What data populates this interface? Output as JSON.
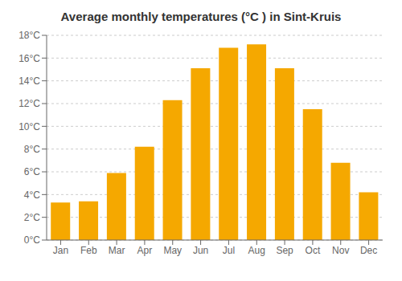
{
  "chart_data": {
    "type": "bar",
    "title": "Average monthly temperatures (°C ) in Sint-Kruis",
    "categories": [
      "Jan",
      "Feb",
      "Mar",
      "Apr",
      "May",
      "Jun",
      "Jul",
      "Aug",
      "Sep",
      "Oct",
      "Nov",
      "Dec"
    ],
    "values": [
      3.3,
      3.4,
      5.9,
      8.2,
      12.3,
      15.1,
      16.9,
      17.2,
      15.1,
      11.5,
      6.8,
      4.2
    ],
    "color": "#F5A800",
    "ylim": [
      0,
      18
    ],
    "yticks": [
      {
        "value": 0,
        "label": "0°C"
      },
      {
        "value": 2,
        "label": "2°C"
      },
      {
        "value": 4,
        "label": "4°C"
      },
      {
        "value": 6,
        "label": "6°C"
      },
      {
        "value": 8,
        "label": "8°C"
      },
      {
        "value": 10,
        "label": "10°C"
      },
      {
        "value": 12,
        "label": "12°C"
      },
      {
        "value": 14,
        "label": "14°C"
      },
      {
        "value": 16,
        "label": "16°C"
      },
      {
        "value": 18,
        "label": "18°C"
      }
    ],
    "grid": true
  }
}
